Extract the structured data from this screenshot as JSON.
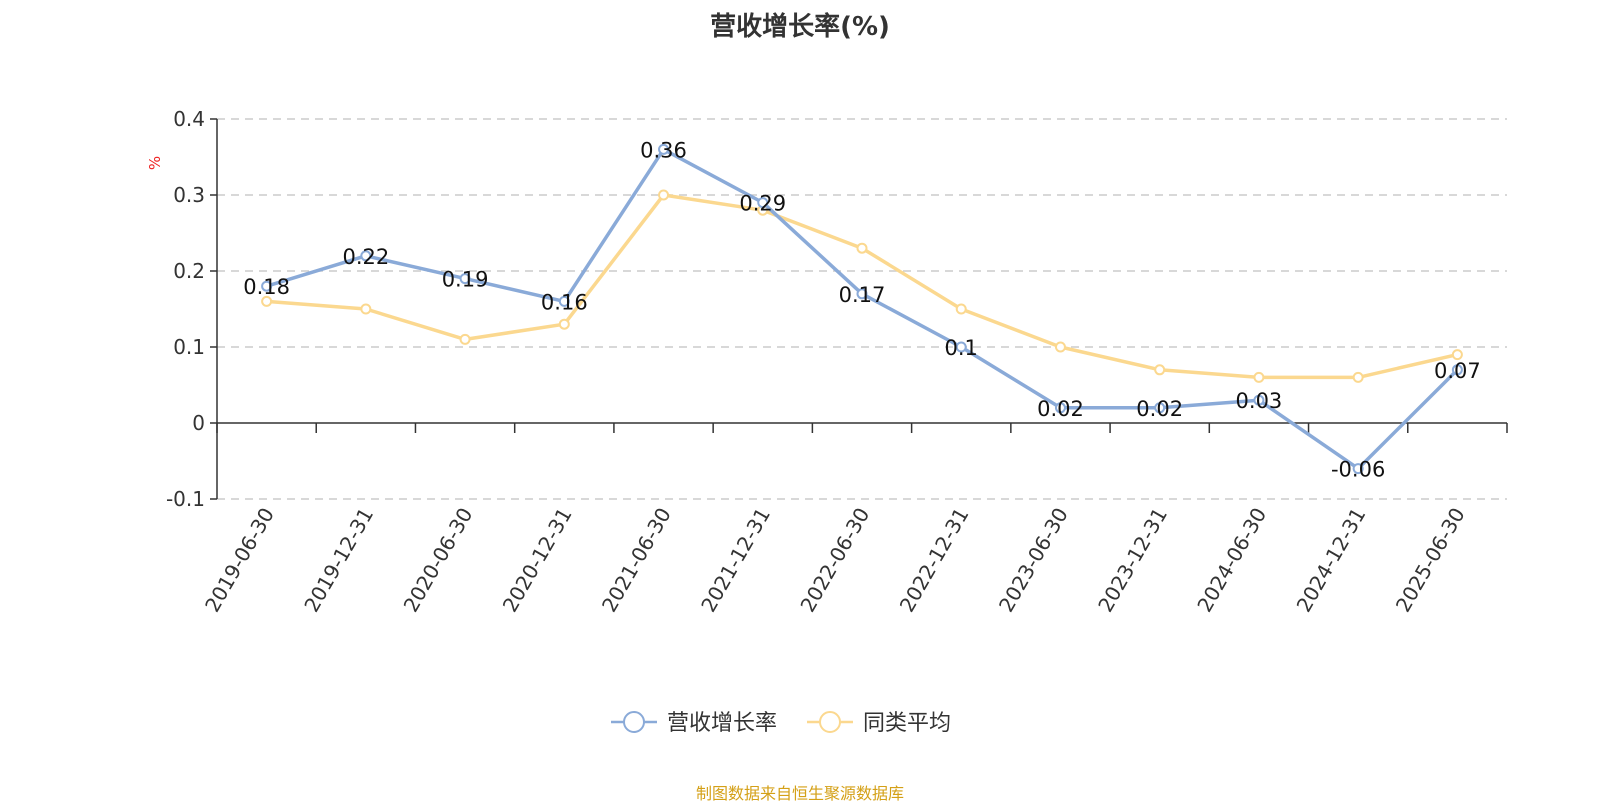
{
  "chart_data": {
    "type": "line",
    "title": "营收增长率(%)",
    "ylabel": "%",
    "xlabel": "",
    "categories": [
      "2019-06-30",
      "2019-12-31",
      "2020-06-30",
      "2020-12-31",
      "2021-06-30",
      "2021-12-31",
      "2022-06-30",
      "2022-12-31",
      "2023-06-30",
      "2023-12-31",
      "2024-06-30",
      "2024-12-31",
      "2025-06-30"
    ],
    "ylim": [
      -0.1,
      0.4
    ],
    "yticks": [
      "0.4",
      "0.3",
      "0.2",
      "0.1",
      "0",
      "-0.1"
    ],
    "grid": true,
    "legend_position": "bottom-center",
    "series": [
      {
        "name": "营收增长率",
        "color": "#8aaad8",
        "show_labels": true,
        "values": [
          0.18,
          0.22,
          0.19,
          0.16,
          0.36,
          0.29,
          0.17,
          0.1,
          0.02,
          0.02,
          0.03,
          -0.06,
          0.07
        ],
        "labels": [
          "0.18",
          "0.22",
          "0.19",
          "0.16",
          "0.36",
          "0.29",
          "0.17",
          "0.1",
          "0.02",
          "0.02",
          "0.03",
          "-0.06",
          "0.07"
        ]
      },
      {
        "name": "同类平均",
        "color": "#fbd88f",
        "show_labels": false,
        "values": [
          0.16,
          0.15,
          0.11,
          0.13,
          0.3,
          0.28,
          0.23,
          0.15,
          0.1,
          0.07,
          0.06,
          0.06,
          0.09
        ]
      }
    ]
  },
  "source_note": "制图数据来自恒生聚源数据库"
}
